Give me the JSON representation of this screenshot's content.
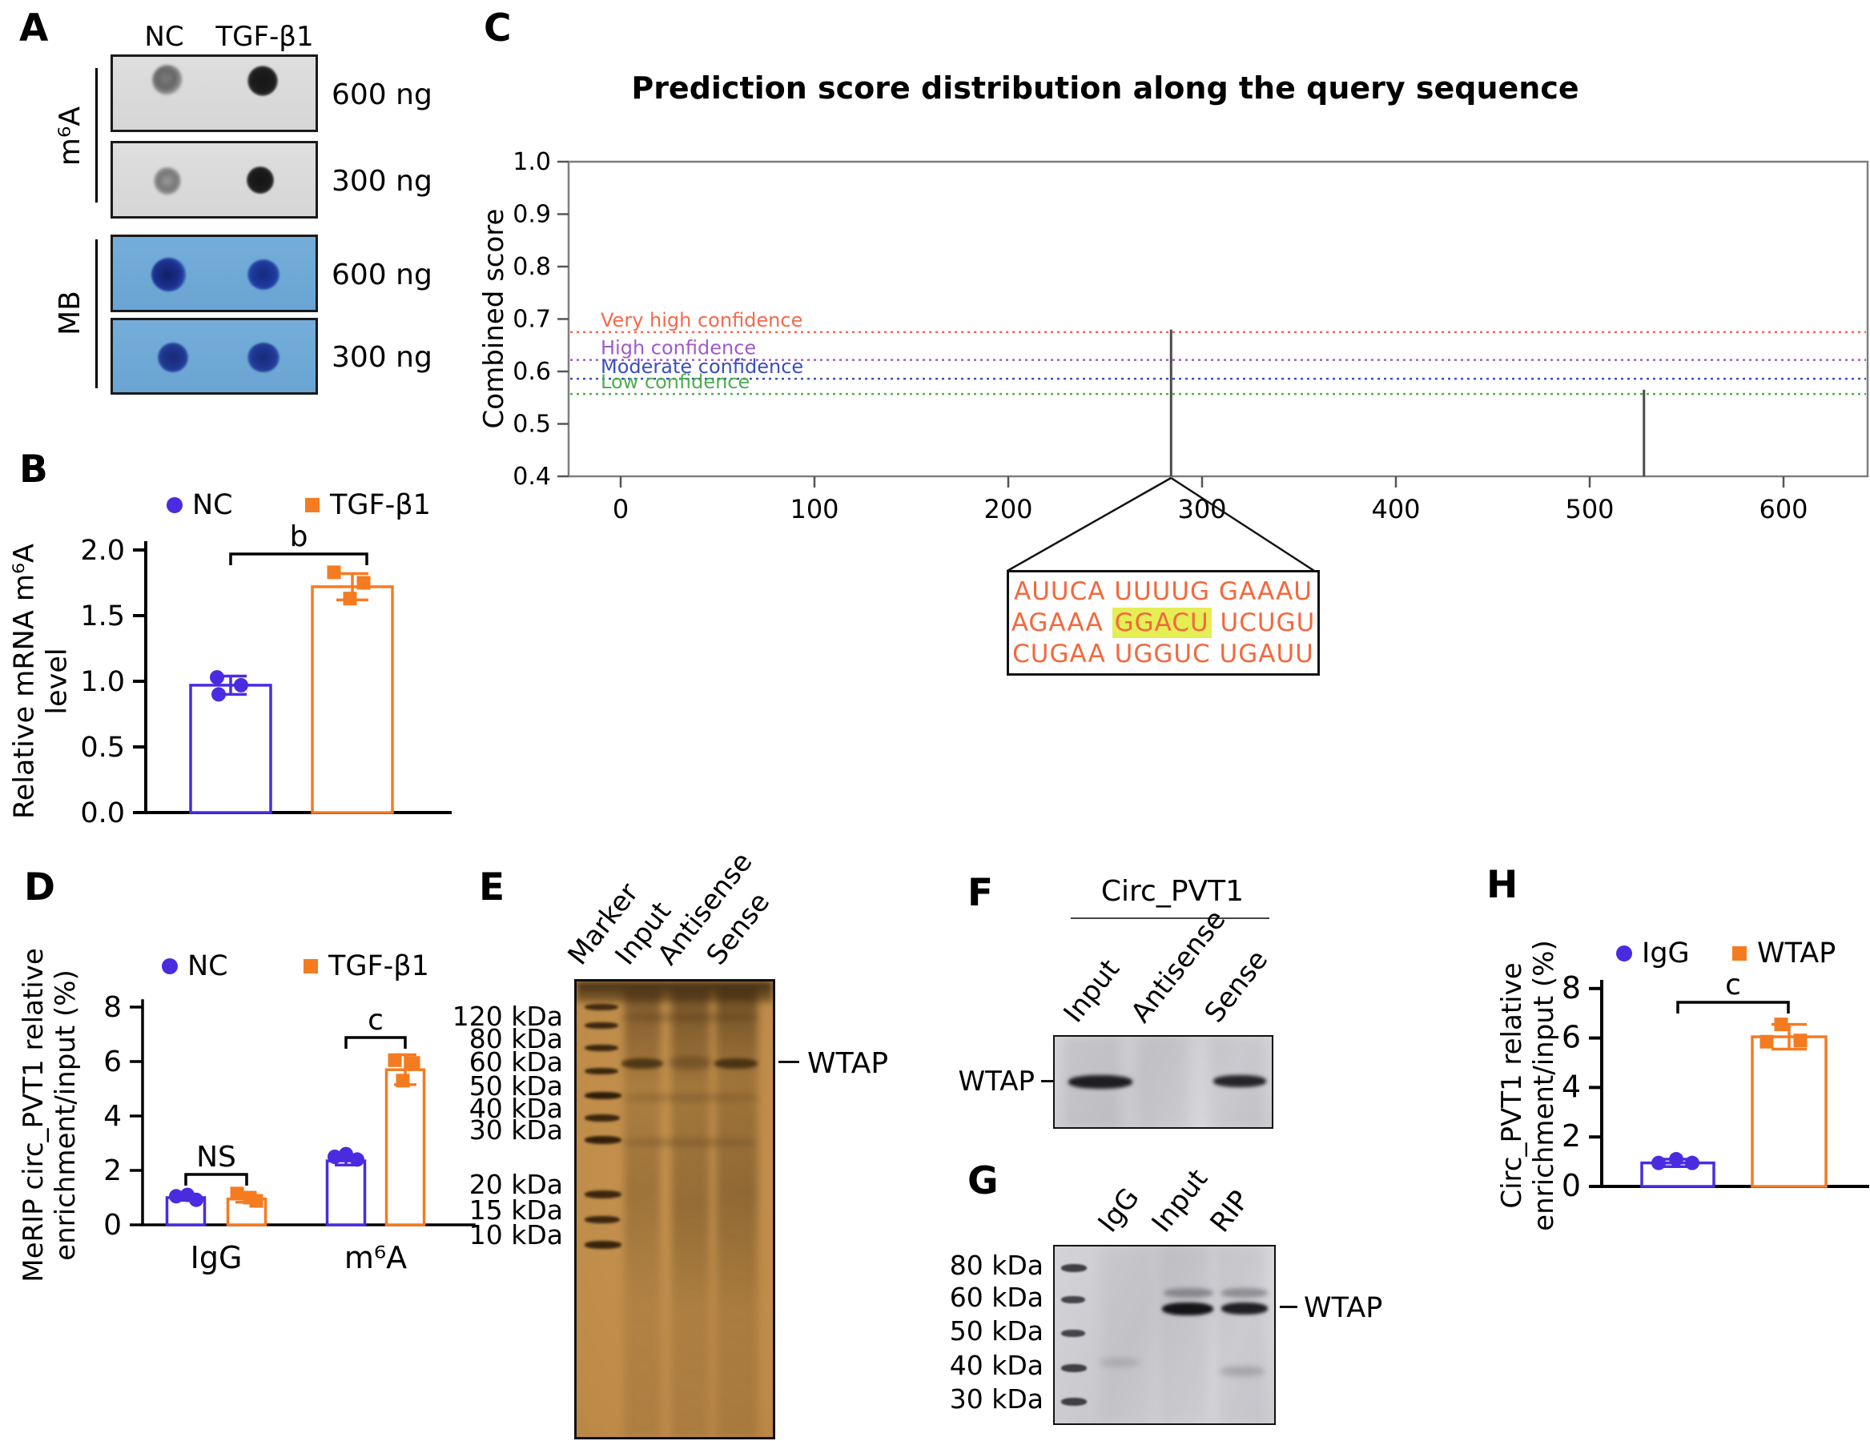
{
  "figure": {
    "panels": {
      "a": "A",
      "b": "B",
      "c": "C",
      "d": "D",
      "e": "E",
      "f": "F",
      "g": "G",
      "h": "H"
    },
    "colors": {
      "nc_blue": "#4b2be0",
      "tgf_orange": "#f57b20",
      "axis_gray": "#7e7e7e"
    }
  },
  "panel_a": {
    "columns": [
      "NC",
      "TGF-β1"
    ],
    "row_groups": [
      {
        "label": "m⁶A"
      },
      {
        "label": "MB"
      }
    ],
    "blots": [
      {
        "group": "m⁶A",
        "amount": "600 ng",
        "membrane": "gray"
      },
      {
        "group": "m⁶A",
        "amount": "300 ng",
        "membrane": "gray"
      },
      {
        "group": "MB",
        "amount": "600 ng",
        "membrane": "blue"
      },
      {
        "group": "MB",
        "amount": "300 ng",
        "membrane": "blue"
      }
    ]
  },
  "panel_e": {
    "lanes": [
      "Marker",
      "Input",
      "Antisense",
      "Sense"
    ],
    "ladder": [
      "120 kDa",
      "80 kDa",
      "60 kDa",
      "50 kDa",
      "40 kDa",
      "30 kDa",
      "20 kDa",
      "15 kDa",
      "10 kDa"
    ],
    "band_label": "WTAP"
  },
  "panel_f": {
    "title": "Circ_PVT1",
    "lanes": [
      "Input",
      "Antisense",
      "Sense"
    ],
    "band_label": "WTAP"
  },
  "panel_g": {
    "lanes": [
      "IgG",
      "Input",
      "RIP"
    ],
    "ladder": [
      "80 kDa",
      "60 kDa",
      "50 kDa",
      "40 kDa",
      "30 kDa"
    ],
    "band_label": "WTAP"
  },
  "chart_data": [
    {
      "id": "B",
      "type": "bar",
      "ylabel": "Relative mRNA m⁶A level",
      "ylabel_lines": [
        "Relative mRNA m⁶A",
        "level"
      ],
      "categories": [
        "NC",
        "TGF-β1"
      ],
      "values": [
        0.97,
        1.72
      ],
      "points": [
        [
          1.03,
          0.97,
          0.9
        ],
        [
          1.83,
          1.75,
          1.63
        ]
      ],
      "errors": [
        0.07,
        0.1
      ],
      "ylim": [
        0,
        2.0
      ],
      "yticks": [
        "0.0",
        "0.5",
        "1.0",
        "1.5",
        "2.0"
      ],
      "grid": false,
      "legend_position": "top",
      "legend": [
        {
          "label": "NC",
          "marker": "circle",
          "color": "#4b2be0"
        },
        {
          "label": "TGF-β1",
          "marker": "square",
          "color": "#f57b20"
        }
      ],
      "significance": [
        {
          "label": "b",
          "from": "NC",
          "to": "TGF-β1"
        }
      ]
    },
    {
      "id": "C",
      "type": "line",
      "title": "Prediction score distribution along the query sequence",
      "ylabel": "Combined score",
      "ylim": [
        0.4,
        1.0
      ],
      "yticks": [
        "1.0",
        "0.9",
        "0.8",
        "0.7",
        "0.6",
        "0.5",
        "0.4"
      ],
      "xticks": [
        0,
        100,
        200,
        300,
        400,
        500,
        600
      ],
      "xlim": [
        -27,
        643
      ],
      "grid": false,
      "thresholds": [
        {
          "label": "Very high confidence",
          "value": 0.675,
          "color": "#f4694b"
        },
        {
          "label": "High confidence",
          "value": 0.622,
          "color": "#a05ac8"
        },
        {
          "label": "Moderate confidence",
          "value": 0.586,
          "color": "#3b4fbc"
        },
        {
          "label": "Low confidence",
          "value": 0.557,
          "color": "#4fae51"
        }
      ],
      "peaks": [
        {
          "x": 284,
          "score": 0.68
        },
        {
          "x": 528,
          "score": 0.565
        }
      ],
      "sequence_callout": {
        "peak_x": 284,
        "lines": [
          "AUUCA UUUUG GAAAU",
          "AGAAA GGACU UCUGU",
          "CUGAA UGGUC UGAUU"
        ],
        "highlight": "GGACU",
        "highlight_color": "#e4ee55",
        "text_color": "#f4683c"
      }
    },
    {
      "id": "D",
      "type": "grouped-bar",
      "ylabel": "MeRIP circ_PVT1 relative enrichment/input (%)",
      "ylabel_lines": [
        "MeRIP circ_PVT1 relative",
        "enrichment/input (%)"
      ],
      "categories": [
        "IgG",
        "m⁶A"
      ],
      "series": [
        {
          "name": "NC",
          "marker": "circle",
          "color": "#4b2be0",
          "values": [
            1.0,
            2.35
          ],
          "points": [
            [
              1.05,
              1.1,
              0.92
            ],
            [
              2.5,
              2.6,
              2.4
            ]
          ],
          "errors": [
            0.1,
            0.15
          ]
        },
        {
          "name": "TGF-β1",
          "marker": "square",
          "color": "#f57b20",
          "values": [
            0.95,
            5.7
          ],
          "points": [
            [
              1.15,
              1.0,
              0.88
            ],
            [
              6.05,
              5.95,
              5.3
            ]
          ],
          "errors": [
            0.12,
            0.55
          ]
        }
      ],
      "ylim": [
        0,
        8
      ],
      "yticks": [
        "0",
        "2",
        "4",
        "6",
        "8"
      ],
      "legend": [
        {
          "label": "NC",
          "marker": "circle",
          "color": "#4b2be0"
        },
        {
          "label": "TGF-β1",
          "marker": "square",
          "color": "#f57b20"
        }
      ],
      "significance": [
        {
          "label": "NS",
          "category": "IgG"
        },
        {
          "label": "c",
          "category": "m⁶A"
        }
      ]
    },
    {
      "id": "H",
      "type": "bar",
      "ylabel": "Circ_PVT1 relative enrichment/input (%)",
      "ylabel_lines": [
        "Circ_PVT1 relative",
        "enrichment/input (%)"
      ],
      "categories": [
        "IgG",
        "WTAP"
      ],
      "values": [
        0.95,
        6.05
      ],
      "points": [
        [
          0.95,
          1.1,
          0.95
        ],
        [
          6.55,
          5.85,
          5.9
        ]
      ],
      "errors": [
        0.15,
        0.5
      ],
      "ylim": [
        0,
        8
      ],
      "yticks": [
        "0",
        "2",
        "4",
        "6",
        "8"
      ],
      "legend": [
        {
          "label": "IgG",
          "marker": "circle",
          "color": "#4b2be0"
        },
        {
          "label": "WTAP",
          "marker": "square",
          "color": "#f57b20"
        }
      ],
      "significance": [
        {
          "label": "c",
          "from": "IgG",
          "to": "WTAP"
        }
      ]
    }
  ]
}
